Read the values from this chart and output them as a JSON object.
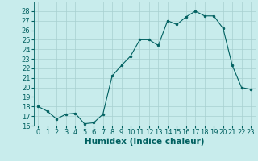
{
  "xlabel": "Humidex (Indice chaleur)",
  "ylabel": "",
  "x": [
    0,
    1,
    2,
    3,
    4,
    5,
    6,
    7,
    8,
    9,
    10,
    11,
    12,
    13,
    14,
    15,
    16,
    17,
    18,
    19,
    20,
    21,
    22,
    23
  ],
  "y": [
    18.0,
    17.5,
    16.7,
    17.2,
    17.3,
    16.2,
    16.3,
    17.2,
    21.2,
    22.3,
    23.3,
    25.0,
    25.0,
    24.4,
    27.0,
    26.6,
    27.4,
    28.0,
    27.5,
    27.5,
    26.2,
    22.3,
    20.0,
    19.8
  ],
  "line_color": "#006060",
  "marker": "o",
  "marker_size": 2.0,
  "bg_color": "#c8ecec",
  "grid_color": "#a8d0d0",
  "ylim": [
    16,
    29
  ],
  "xlim": [
    -0.5,
    23.5
  ],
  "yticks": [
    16,
    17,
    18,
    19,
    20,
    21,
    22,
    23,
    24,
    25,
    26,
    27,
    28
  ],
  "xticks": [
    0,
    1,
    2,
    3,
    4,
    5,
    6,
    7,
    8,
    9,
    10,
    11,
    12,
    13,
    14,
    15,
    16,
    17,
    18,
    19,
    20,
    21,
    22,
    23
  ],
  "tick_fontsize": 6.0,
  "xlabel_fontsize": 7.5,
  "xlabel_fontweight": "bold"
}
